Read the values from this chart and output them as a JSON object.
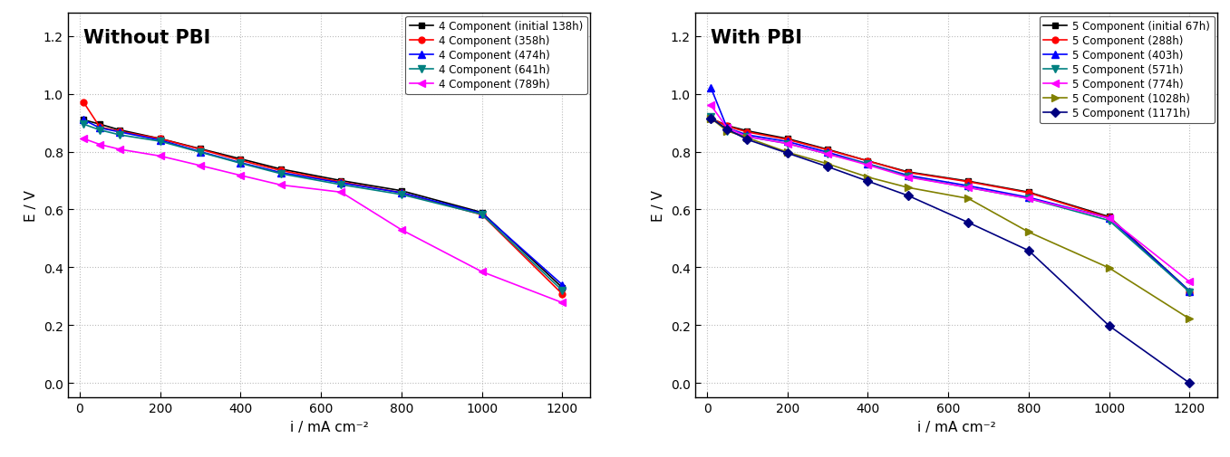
{
  "left_title": "Without PBI",
  "right_title": "With PBI",
  "xlabel": "i / mA cm⁻²",
  "ylabel": "E / V",
  "left_series": [
    {
      "label": "4 Component (initial 138h)",
      "color": "#000000",
      "marker": "s",
      "x": [
        10,
        50,
        100,
        200,
        300,
        400,
        500,
        650,
        800,
        1000,
        1200
      ],
      "y": [
        0.91,
        0.895,
        0.875,
        0.845,
        0.81,
        0.775,
        0.74,
        0.7,
        0.665,
        0.59,
        0.33
      ]
    },
    {
      "label": "4 Component (358h)",
      "color": "#ff0000",
      "marker": "o",
      "x": [
        10,
        50,
        100,
        200,
        300,
        400,
        500,
        650,
        800,
        1000,
        1200
      ],
      "y": [
        0.97,
        0.885,
        0.87,
        0.845,
        0.808,
        0.77,
        0.735,
        0.695,
        0.658,
        0.582,
        0.308
      ]
    },
    {
      "label": "4 Component (474h)",
      "color": "#0000ff",
      "marker": "^",
      "x": [
        10,
        50,
        100,
        200,
        300,
        400,
        500,
        650,
        800,
        1000,
        1200
      ],
      "y": [
        0.91,
        0.882,
        0.868,
        0.84,
        0.8,
        0.762,
        0.728,
        0.692,
        0.658,
        0.587,
        0.34
      ]
    },
    {
      "label": "4 Component (641h)",
      "color": "#008080",
      "marker": "v",
      "x": [
        10,
        50,
        100,
        200,
        300,
        400,
        500,
        650,
        800,
        1000,
        1200
      ],
      "y": [
        0.895,
        0.875,
        0.858,
        0.836,
        0.798,
        0.76,
        0.724,
        0.686,
        0.652,
        0.583,
        0.32
      ]
    },
    {
      "label": "4 Component (789h)",
      "color": "#ff00ff",
      "marker": "<",
      "x": [
        10,
        50,
        100,
        200,
        300,
        400,
        500,
        650,
        800,
        1000,
        1200
      ],
      "y": [
        0.845,
        0.825,
        0.808,
        0.785,
        0.752,
        0.718,
        0.685,
        0.66,
        0.53,
        0.385,
        0.278
      ]
    }
  ],
  "right_series": [
    {
      "label": "5 Component (initial 67h)",
      "color": "#000000",
      "marker": "s",
      "x": [
        10,
        50,
        100,
        200,
        300,
        400,
        500,
        650,
        800,
        1000,
        1200
      ],
      "y": [
        0.915,
        0.89,
        0.872,
        0.845,
        0.808,
        0.768,
        0.73,
        0.698,
        0.66,
        0.575,
        0.318
      ]
    },
    {
      "label": "5 Component (288h)",
      "color": "#ff0000",
      "marker": "o",
      "x": [
        10,
        50,
        100,
        200,
        300,
        400,
        500,
        650,
        800,
        1000,
        1200
      ],
      "y": [
        0.915,
        0.888,
        0.868,
        0.842,
        0.806,
        0.768,
        0.728,
        0.696,
        0.658,
        0.572,
        0.315
      ]
    },
    {
      "label": "5 Component (403h)",
      "color": "#0000ff",
      "marker": "^",
      "x": [
        10,
        50,
        100,
        200,
        300,
        400,
        500,
        650,
        800,
        1000,
        1200
      ],
      "y": [
        1.02,
        0.882,
        0.858,
        0.835,
        0.798,
        0.758,
        0.718,
        0.682,
        0.642,
        0.57,
        0.318
      ]
    },
    {
      "label": "5 Component (571h)",
      "color": "#008080",
      "marker": "v",
      "x": [
        10,
        50,
        100,
        200,
        300,
        400,
        500,
        650,
        800,
        1000,
        1200
      ],
      "y": [
        0.92,
        0.872,
        0.852,
        0.828,
        0.792,
        0.758,
        0.714,
        0.676,
        0.638,
        0.562,
        0.315
      ]
    },
    {
      "label": "5 Component (774h)",
      "color": "#ff00ff",
      "marker": "<",
      "x": [
        10,
        50,
        100,
        200,
        300,
        400,
        500,
        650,
        800,
        1000,
        1200
      ],
      "y": [
        0.96,
        0.882,
        0.852,
        0.828,
        0.792,
        0.754,
        0.712,
        0.676,
        0.638,
        0.57,
        0.35
      ]
    },
    {
      "label": "5 Component (1028h)",
      "color": "#808000",
      "marker": ">",
      "x": [
        10,
        50,
        100,
        200,
        300,
        400,
        500,
        650,
        800,
        1000,
        1200
      ],
      "y": [
        0.915,
        0.872,
        0.848,
        0.798,
        0.758,
        0.712,
        0.676,
        0.638,
        0.522,
        0.398,
        0.222
      ]
    },
    {
      "label": "5 Component (1171h)",
      "color": "#000080",
      "marker": "D",
      "x": [
        10,
        50,
        100,
        200,
        300,
        400,
        500,
        650,
        800,
        1000,
        1200
      ],
      "y": [
        0.915,
        0.878,
        0.842,
        0.795,
        0.748,
        0.698,
        0.648,
        0.555,
        0.458,
        0.198,
        0.0
      ]
    }
  ],
  "xlim": [
    -30,
    1270
  ],
  "ylim": [
    -0.05,
    1.28
  ],
  "xticks": [
    0,
    200,
    400,
    600,
    800,
    1000,
    1200
  ],
  "yticks": [
    0.0,
    0.2,
    0.4,
    0.6,
    0.8,
    1.0,
    1.2
  ],
  "bg_color": "#ffffff",
  "grid_color": "#bbbbbb",
  "title_fontsize": 15,
  "label_fontsize": 11,
  "tick_fontsize": 10,
  "legend_fontsize": 8.5
}
